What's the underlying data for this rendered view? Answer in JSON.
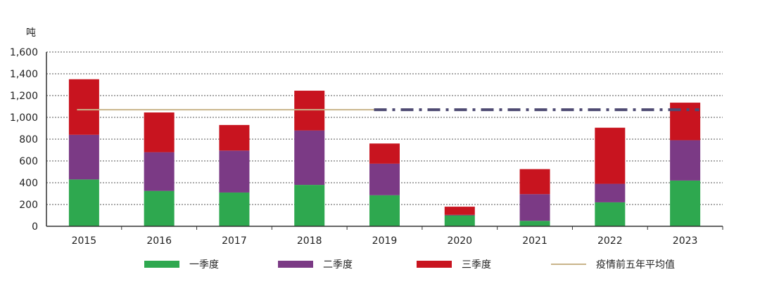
{
  "chart_data": {
    "type": "bar",
    "stacked": true,
    "y_unit": "吨",
    "categories": [
      "2015",
      "2016",
      "2017",
      "2018",
      "2019",
      "2020",
      "2021",
      "2022",
      "2023"
    ],
    "series": [
      {
        "name": "一季度",
        "color": "#2ea84f",
        "values": [
          430,
          325,
          310,
          380,
          285,
          100,
          50,
          220,
          420
        ]
      },
      {
        "name": "二季度",
        "color": "#7b3a85",
        "values": [
          410,
          355,
          385,
          500,
          290,
          5,
          245,
          170,
          370
        ]
      },
      {
        "name": "三季度",
        "color": "#c8141f",
        "values": [
          510,
          365,
          235,
          365,
          185,
          75,
          230,
          515,
          345
        ]
      }
    ],
    "reference_line": {
      "name": "疫情前五年平均值",
      "value": 1070,
      "color": "#c9b48a",
      "projection_color": "#4e4a72"
    },
    "yticks": [
      "0",
      "200",
      "400",
      "600",
      "800",
      "1,000",
      "1,200",
      "1,400",
      "1,600"
    ],
    "ylim": [
      0,
      1600
    ],
    "grid": true,
    "legend_position": "bottom"
  }
}
